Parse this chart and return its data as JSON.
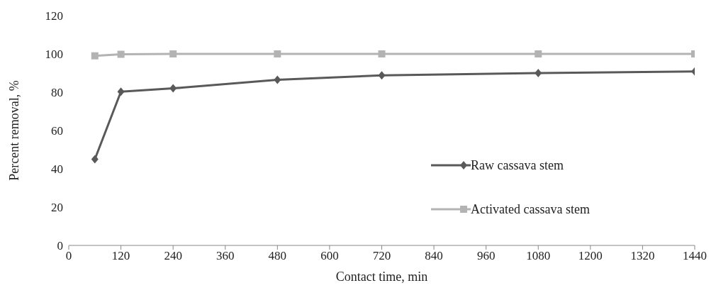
{
  "chart_data": {
    "type": "line",
    "xlabel": "Contact time, min",
    "ylabel": "Percent removal, %",
    "xlim": [
      0,
      1440
    ],
    "xticks": [
      0,
      120,
      240,
      360,
      480,
      600,
      720,
      840,
      960,
      1080,
      1200,
      1320,
      1440
    ],
    "ylim": [
      0,
      120
    ],
    "yticks": [
      0,
      20,
      40,
      60,
      80,
      100,
      120
    ],
    "grid": false,
    "legend": "right",
    "series": [
      {
        "name": "Raw cassava stem",
        "color": "#595959",
        "marker": "diamond",
        "x": [
          60,
          120,
          240,
          480,
          720,
          1080,
          1440
        ],
        "values": [
          45,
          80.3,
          82,
          86.5,
          88.8,
          90,
          90.8
        ]
      },
      {
        "name": "Activated cassava stem",
        "color": "#b3b3b3",
        "marker": "square",
        "x": [
          60,
          120,
          240,
          480,
          720,
          1080,
          1440
        ],
        "values": [
          99,
          99.8,
          100,
          100,
          100,
          100,
          100
        ]
      }
    ]
  }
}
